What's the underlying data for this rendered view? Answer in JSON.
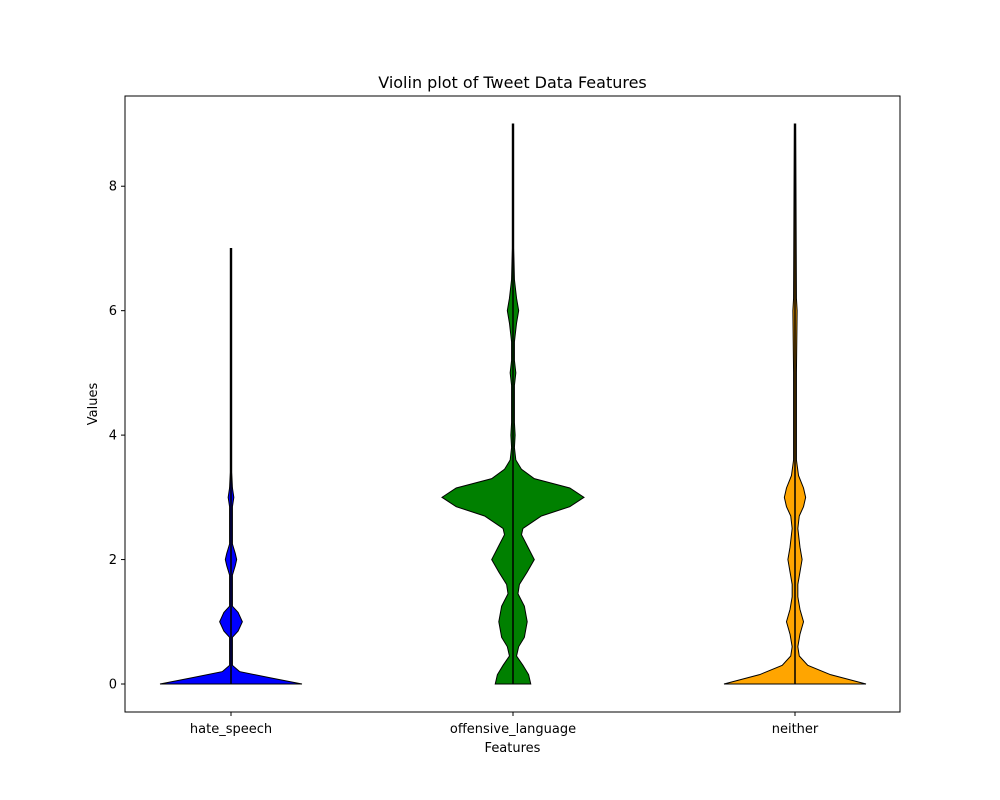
{
  "chart_data": {
    "type": "violin",
    "title": "Violin plot of Tweet Data Features",
    "xlabel": "Features",
    "ylabel": "Values",
    "ylim": [
      -0.45,
      9.45
    ],
    "yticks": [
      0,
      2,
      4,
      6,
      8
    ],
    "categories": [
      "hate_speech",
      "offensive_language",
      "neither"
    ],
    "colors": [
      "#0000ff",
      "#008000",
      "#ffa500"
    ],
    "grid": false,
    "series": [
      {
        "min": 0,
        "max": 7,
        "density": [
          [
            0,
            1.0
          ],
          [
            0.1,
            0.55
          ],
          [
            0.2,
            0.12
          ],
          [
            0.3,
            0.02
          ],
          [
            0.5,
            0.02
          ],
          [
            0.75,
            0.02
          ],
          [
            0.85,
            0.1
          ],
          [
            1.0,
            0.16
          ],
          [
            1.15,
            0.1
          ],
          [
            1.25,
            0.02
          ],
          [
            1.6,
            0.02
          ],
          [
            1.75,
            0.02
          ],
          [
            1.9,
            0.06
          ],
          [
            2.0,
            0.08
          ],
          [
            2.1,
            0.06
          ],
          [
            2.25,
            0.02
          ],
          [
            2.85,
            0.02
          ],
          [
            3.0,
            0.04
          ],
          [
            3.15,
            0.02
          ],
          [
            3.4,
            0.01
          ],
          [
            7.0,
            0.01
          ]
        ]
      },
      {
        "min": 0,
        "max": 9,
        "density": [
          [
            0,
            0.25
          ],
          [
            0.15,
            0.22
          ],
          [
            0.3,
            0.14
          ],
          [
            0.45,
            0.05
          ],
          [
            0.6,
            0.08
          ],
          [
            0.75,
            0.16
          ],
          [
            1.0,
            0.2
          ],
          [
            1.25,
            0.16
          ],
          [
            1.45,
            0.07
          ],
          [
            1.6,
            0.09
          ],
          [
            1.8,
            0.2
          ],
          [
            2.0,
            0.3
          ],
          [
            2.2,
            0.21
          ],
          [
            2.4,
            0.12
          ],
          [
            2.5,
            0.14
          ],
          [
            2.7,
            0.4
          ],
          [
            2.85,
            0.8
          ],
          [
            3.0,
            1.0
          ],
          [
            3.15,
            0.8
          ],
          [
            3.3,
            0.3
          ],
          [
            3.45,
            0.12
          ],
          [
            3.6,
            0.04
          ],
          [
            3.8,
            0.02
          ],
          [
            4.0,
            0.03
          ],
          [
            4.2,
            0.02
          ],
          [
            4.5,
            0.02
          ],
          [
            4.8,
            0.02
          ],
          [
            5.0,
            0.04
          ],
          [
            5.2,
            0.02
          ],
          [
            5.5,
            0.02
          ],
          [
            5.8,
            0.05
          ],
          [
            6.0,
            0.08
          ],
          [
            6.2,
            0.05
          ],
          [
            6.5,
            0.02
          ],
          [
            7.0,
            0.01
          ],
          [
            9.0,
            0.01
          ]
        ]
      },
      {
        "min": 0,
        "max": 9,
        "density": [
          [
            0,
            1.0
          ],
          [
            0.15,
            0.5
          ],
          [
            0.3,
            0.18
          ],
          [
            0.45,
            0.06
          ],
          [
            0.6,
            0.04
          ],
          [
            0.8,
            0.07
          ],
          [
            1.0,
            0.12
          ],
          [
            1.2,
            0.07
          ],
          [
            1.4,
            0.04
          ],
          [
            1.6,
            0.04
          ],
          [
            1.8,
            0.07
          ],
          [
            2.0,
            0.1
          ],
          [
            2.2,
            0.07
          ],
          [
            2.5,
            0.04
          ],
          [
            2.7,
            0.06
          ],
          [
            2.85,
            0.12
          ],
          [
            3.0,
            0.15
          ],
          [
            3.15,
            0.12
          ],
          [
            3.35,
            0.05
          ],
          [
            3.6,
            0.02
          ],
          [
            5.0,
            0.02
          ],
          [
            6.0,
            0.03
          ],
          [
            6.2,
            0.02
          ],
          [
            9.0,
            0.01
          ]
        ]
      }
    ]
  }
}
